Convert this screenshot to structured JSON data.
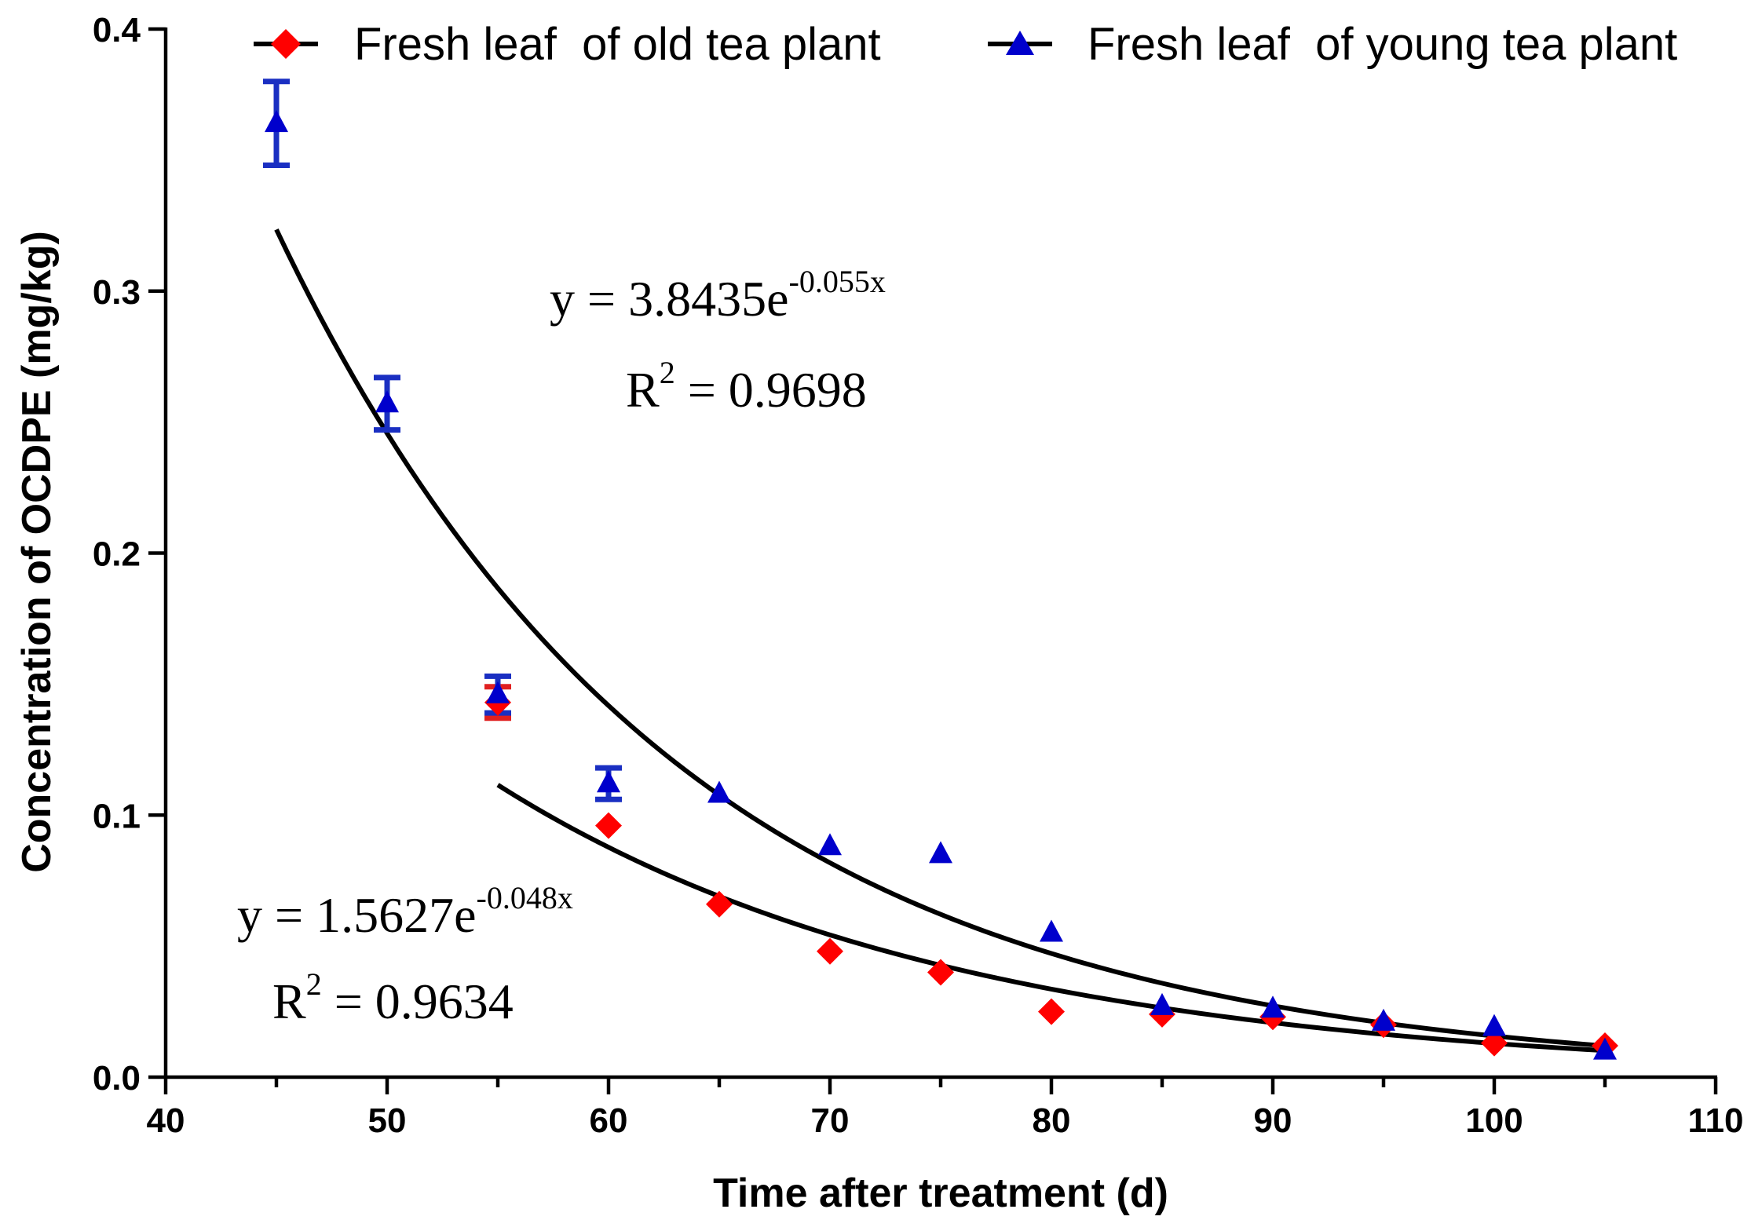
{
  "chart_data": {
    "type": "scatter",
    "title": "",
    "xlabel": "Time after treatment (d)",
    "ylabel": "Concentration of OCDPE (mg/kg)",
    "xlim": [
      40,
      110
    ],
    "ylim": [
      0.0,
      0.4
    ],
    "xticks": [
      "40",
      "50",
      "60",
      "70",
      "80",
      "90",
      "100",
      "110"
    ],
    "yticks": [
      "0.0",
      "0.1",
      "0.2",
      "0.3",
      "0.4"
    ],
    "legend_position": "top",
    "grid": false,
    "series": [
      {
        "name": "Fresh leaf  of old tea plant",
        "marker": "diamond",
        "color": "#ff0000",
        "x": [
          55,
          60,
          65,
          70,
          75,
          80,
          85,
          90,
          95,
          100,
          105
        ],
        "y": [
          0.143,
          0.096,
          0.066,
          0.048,
          0.04,
          0.025,
          0.024,
          0.023,
          0.02,
          0.013,
          0.012
        ],
        "error": [
          0.006,
          0,
          0,
          0,
          0,
          0,
          0,
          0,
          0,
          0,
          0
        ],
        "fit": {
          "a": 1.5627,
          "b": -0.048,
          "x_range": [
            55,
            105
          ]
        },
        "equation": {
          "main": "y = 1.5627e",
          "exp": "-0.048x"
        },
        "r2": {
          "prefix": "R",
          "sup": "2",
          "rest": " = 0.9634"
        }
      },
      {
        "name": "Fresh leaf  of young tea plant",
        "marker": "triangle",
        "color": "#0000cc",
        "x": [
          45,
          50,
          55,
          60,
          65,
          70,
          75,
          80,
          85,
          90,
          95,
          100,
          105
        ],
        "y": [
          0.364,
          0.257,
          0.146,
          0.112,
          0.108,
          0.088,
          0.085,
          0.055,
          0.027,
          0.026,
          0.021,
          0.019,
          0.01
        ],
        "error": [
          0.016,
          0.01,
          0.007,
          0.006,
          0,
          0,
          0,
          0,
          0,
          0,
          0,
          0,
          0
        ],
        "fit": {
          "a": 3.8435,
          "b": -0.055,
          "x_range": [
            45,
            105
          ]
        },
        "equation": {
          "main": "y = 3.8435e",
          "exp": "-0.055x"
        },
        "r2": {
          "prefix": "R",
          "sup": "2",
          "rest": " = 0.9698"
        }
      }
    ]
  }
}
